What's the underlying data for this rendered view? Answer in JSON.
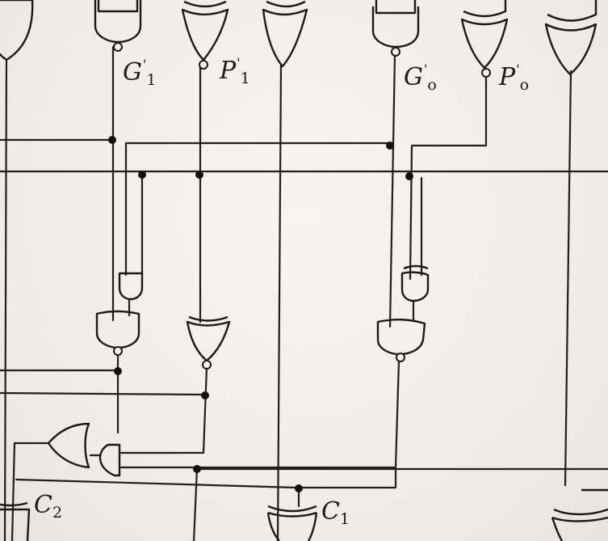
{
  "labels": {
    "g1": {
      "letter": "G",
      "prime": "'",
      "sub": "1"
    },
    "p1": {
      "letter": "P",
      "prime": "'",
      "sub": "1"
    },
    "g0": {
      "letter": "G",
      "prime": "'",
      "sub": "o"
    },
    "p0": {
      "letter": "P",
      "prime": "'",
      "sub": "o"
    },
    "c2": {
      "letter": "C",
      "sub": "2"
    },
    "c1": {
      "letter": "C",
      "sub": "1"
    }
  },
  "colors": {
    "ink": "#1a1a1a",
    "paper": "#f1f0ec"
  }
}
